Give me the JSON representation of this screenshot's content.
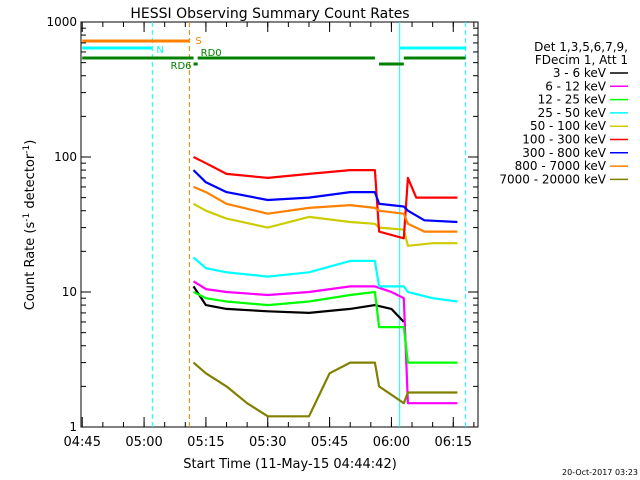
{
  "chart_data": {
    "type": "line",
    "title": "HESSI Observing Summary Count Rates",
    "xlabel": "Start Time (11-May-15 04:44:42)",
    "ylabel_main": "Count Rate (s",
    "ylabel_sup1": "-1",
    "ylabel_mid": " detector",
    "ylabel_sup2": "-1",
    "ylabel_end": ")",
    "yscale": "log",
    "ylim": [
      1,
      1000
    ],
    "xlim": [
      "04:44:42",
      "06:21:00"
    ],
    "xticks": [
      "04:45",
      "05:00",
      "05:15",
      "05:30",
      "05:45",
      "06:00",
      "06:15"
    ],
    "yticks": [
      "1",
      "10",
      "100",
      "1000"
    ],
    "legend_header": [
      "Det 1,3,5,6,7,9,",
      "FDecim 1, Att 1"
    ],
    "legend_position": "right",
    "footer_date": "20-Oct-2017 03:23",
    "series": [
      {
        "name": "3 - 6 keV",
        "color": "#000000",
        "points": [
          [
            "05:12",
            11
          ],
          [
            "05:15",
            8
          ],
          [
            "05:20",
            7.5
          ],
          [
            "05:30",
            7.2
          ],
          [
            "05:40",
            7
          ],
          [
            "05:50",
            7.5
          ],
          [
            "05:56",
            8
          ],
          [
            "06:00",
            7.5
          ],
          [
            "06:03",
            6
          ]
        ]
      },
      {
        "name": "6 - 12 keV",
        "color": "#ff00ff",
        "points": [
          [
            "05:12",
            12
          ],
          [
            "05:15",
            10.5
          ],
          [
            "05:20",
            10
          ],
          [
            "05:30",
            9.5
          ],
          [
            "05:40",
            10
          ],
          [
            "05:50",
            11
          ],
          [
            "05:56",
            11
          ],
          [
            "06:00",
            10
          ],
          [
            "06:03",
            9
          ],
          [
            "06:04",
            1.5
          ],
          [
            "06:16",
            1.5
          ]
        ]
      },
      {
        "name": "12 - 25 keV",
        "color": "#00ff00",
        "points": [
          [
            "05:12",
            10
          ],
          [
            "05:15",
            9
          ],
          [
            "05:20",
            8.5
          ],
          [
            "05:30",
            8
          ],
          [
            "05:40",
            8.5
          ],
          [
            "05:50",
            9.5
          ],
          [
            "05:56",
            10
          ],
          [
            "05:57",
            5.5
          ],
          [
            "06:03",
            5.5
          ],
          [
            "06:04",
            3
          ],
          [
            "06:16",
            3
          ]
        ]
      },
      {
        "name": "25 - 50 keV",
        "color": "#00ffff",
        "points": [
          [
            "05:12",
            18
          ],
          [
            "05:15",
            15
          ],
          [
            "05:20",
            14
          ],
          [
            "05:30",
            13
          ],
          [
            "05:40",
            14
          ],
          [
            "05:50",
            17
          ],
          [
            "05:56",
            17
          ],
          [
            "05:57",
            11
          ],
          [
            "06:03",
            11
          ],
          [
            "06:04",
            10
          ],
          [
            "06:10",
            9
          ],
          [
            "06:16",
            8.5
          ]
        ]
      },
      {
        "name": "50 - 100 keV",
        "color": "#cccc00",
        "points": [
          [
            "05:12",
            45
          ],
          [
            "05:15",
            40
          ],
          [
            "05:20",
            35
          ],
          [
            "05:30",
            30
          ],
          [
            "05:40",
            36
          ],
          [
            "05:50",
            33
          ],
          [
            "05:56",
            32
          ],
          [
            "05:57",
            30
          ],
          [
            "06:03",
            29
          ],
          [
            "06:04",
            22
          ],
          [
            "06:10",
            23
          ],
          [
            "06:16",
            23
          ]
        ]
      },
      {
        "name": "100 - 300 keV",
        "color": "#ff0000",
        "points": [
          [
            "05:12",
            100
          ],
          [
            "05:15",
            90
          ],
          [
            "05:20",
            75
          ],
          [
            "05:30",
            70
          ],
          [
            "05:40",
            75
          ],
          [
            "05:50",
            80
          ],
          [
            "05:56",
            80
          ],
          [
            "05:57",
            28
          ],
          [
            "06:03",
            25
          ],
          [
            "06:04",
            70
          ],
          [
            "06:06",
            50
          ],
          [
            "06:16",
            50
          ]
        ]
      },
      {
        "name": "300 - 800 keV",
        "color": "#0000ff",
        "points": [
          [
            "05:12",
            80
          ],
          [
            "05:15",
            65
          ],
          [
            "05:20",
            55
          ],
          [
            "05:30",
            48
          ],
          [
            "05:40",
            50
          ],
          [
            "05:50",
            55
          ],
          [
            "05:56",
            55
          ],
          [
            "05:57",
            45
          ],
          [
            "06:03",
            43
          ],
          [
            "06:04",
            40
          ],
          [
            "06:08",
            34
          ],
          [
            "06:16",
            33
          ]
        ]
      },
      {
        "name": "800 - 7000 keV",
        "color": "#ff8000",
        "points": [
          [
            "05:12",
            60
          ],
          [
            "05:15",
            55
          ],
          [
            "05:20",
            45
          ],
          [
            "05:30",
            38
          ],
          [
            "05:40",
            42
          ],
          [
            "05:50",
            44
          ],
          [
            "05:56",
            42
          ],
          [
            "05:57",
            40
          ],
          [
            "06:03",
            38
          ],
          [
            "06:04",
            32
          ],
          [
            "06:08",
            28
          ],
          [
            "06:16",
            28
          ]
        ]
      },
      {
        "name": "7000 - 20000 keV",
        "color": "#808000",
        "points": [
          [
            "05:12",
            3
          ],
          [
            "05:15",
            2.5
          ],
          [
            "05:20",
            2
          ],
          [
            "05:25",
            1.5
          ],
          [
            "05:30",
            1.2
          ],
          [
            "05:40",
            1.2
          ],
          [
            "05:45",
            2.5
          ],
          [
            "05:50",
            3
          ],
          [
            "05:56",
            3
          ],
          [
            "05:57",
            2
          ],
          [
            "06:03",
            1.5
          ],
          [
            "06:04",
            1.8
          ],
          [
            "06:16",
            1.8
          ]
        ]
      }
    ],
    "flag_bars": [
      {
        "label": "S",
        "color": "#ff8000",
        "level": 1,
        "segments": [
          [
            "04:45",
            "05:11"
          ]
        ]
      },
      {
        "label": "N",
        "color": "#00ffff",
        "level": 2,
        "segments": [
          [
            "04:45",
            "05:02"
          ],
          [
            "06:02",
            "06:18"
          ]
        ]
      },
      {
        "label": "RD0",
        "color": "#008000",
        "level": 3,
        "segments": [
          [
            "04:45",
            "05:12"
          ],
          [
            "05:13",
            "05:56"
          ],
          [
            "06:03",
            "06:18"
          ]
        ]
      },
      {
        "label": "RD6",
        "color": "#008000",
        "level": 4,
        "segments": [
          [
            "05:12",
            "05:13"
          ],
          [
            "05:57",
            "06:03"
          ]
        ]
      }
    ],
    "vertical_markers": [
      {
        "time": "05:02",
        "color": "#00ffff",
        "style": "dashed"
      },
      {
        "time": "05:11",
        "color": "#ff8000",
        "style": "dashed"
      },
      {
        "time": "06:02",
        "color": "#00ffff",
        "style": "solid"
      },
      {
        "time": "06:18",
        "color": "#00ffff",
        "style": "dashed"
      }
    ]
  }
}
